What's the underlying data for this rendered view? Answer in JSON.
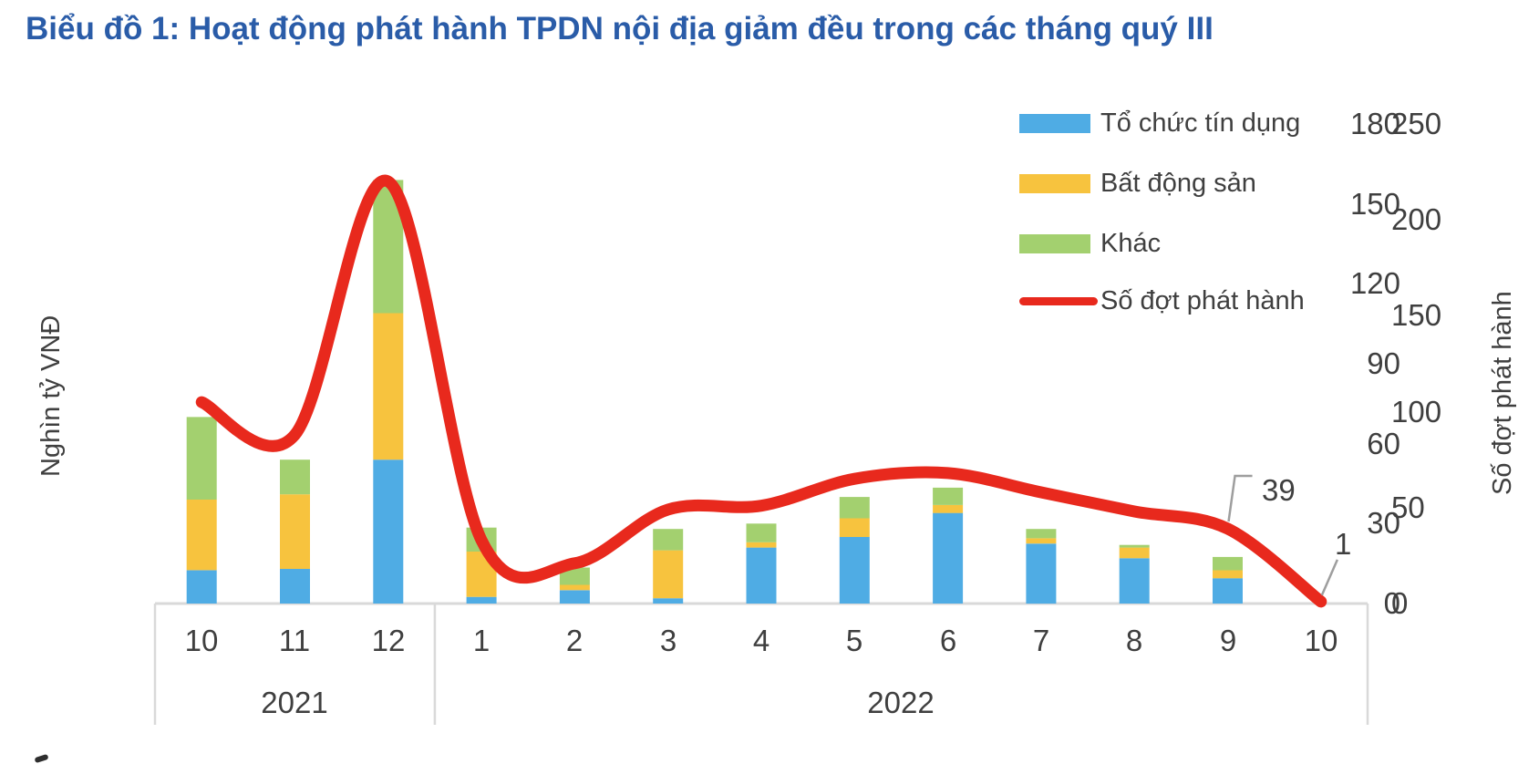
{
  "title": "Biểu đồ 1: Hoạt động phát hành TPDN nội địa giảm đều trong các tháng quý III",
  "chart_data": {
    "type": "combo: stacked-bar + smooth-line",
    "categories": [
      "10",
      "11",
      "12",
      "1",
      "2",
      "3",
      "4",
      "5",
      "6",
      "7",
      "8",
      "9",
      "10"
    ],
    "category_groups": [
      {
        "label": "2021",
        "span": 3
      },
      {
        "label": "2022",
        "span": 10
      }
    ],
    "bar_series": [
      {
        "name": "Tổ chức tín dụng",
        "color": "#4FACE4",
        "axis": "left",
        "values": [
          12.5,
          13,
          54,
          2.5,
          5,
          2,
          21,
          25,
          34,
          22.5,
          17,
          9.5,
          0
        ]
      },
      {
        "name": "Bất động sản",
        "color": "#F7C33E",
        "axis": "left",
        "values": [
          26.5,
          28,
          55,
          17,
          2,
          18,
          2,
          7,
          3,
          2,
          4,
          3,
          0
        ]
      },
      {
        "name": "Khác",
        "color": "#A3D06F",
        "axis": "left",
        "values": [
          31,
          13,
          50,
          9,
          6.5,
          8,
          7,
          8,
          6.5,
          3.5,
          1,
          5,
          0
        ]
      }
    ],
    "line_series": {
      "name": "Số đợt phát hành",
      "color": "#E8291D",
      "axis": "right",
      "values": [
        105,
        88,
        220,
        33,
        21,
        49,
        51,
        65,
        68,
        58,
        48,
        39,
        1
      ]
    },
    "left_axis": {
      "title": "Nghìn tỷ VNĐ",
      "ticks": [
        0,
        30,
        60,
        90,
        120,
        150,
        180
      ],
      "min": 0,
      "max": 180
    },
    "right_axis": {
      "title": "Số đợt phát hành",
      "ticks": [
        0,
        50,
        100,
        150,
        200,
        250
      ],
      "min": 0,
      "max": 250
    },
    "annotations": [
      {
        "text": "39",
        "category_index": 11,
        "series": "Số đợt phát hành"
      },
      {
        "text": "1",
        "category_index": 12,
        "series": "Số đợt phát hành"
      }
    ],
    "legend_position": "top-right",
    "grid": false,
    "colors": {
      "title_text": "#2A5CA8",
      "axis_text": "#3F3F3F",
      "axis_line": "#D9D9D9",
      "leader_line": "#9E9E9E"
    }
  }
}
